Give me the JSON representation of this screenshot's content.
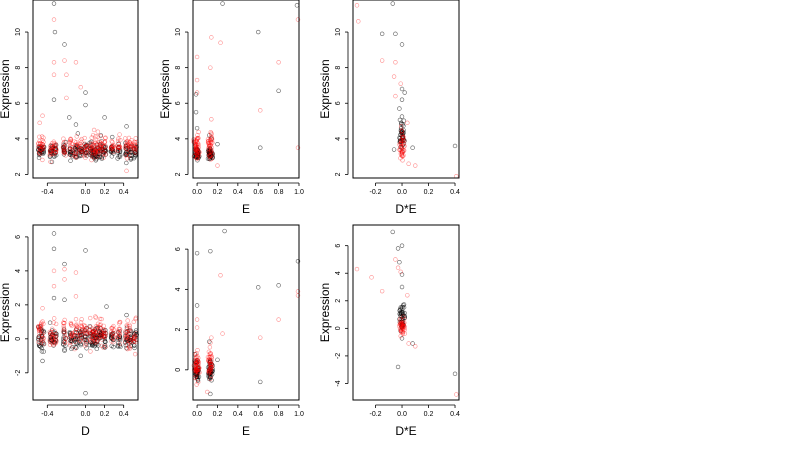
{
  "figure": {
    "point_colors": {
      "black_group": "#000000",
      "red_group": "#ff0000"
    },
    "marker": "open-circle"
  },
  "chart_data": [
    {
      "type": "scatter",
      "xlabel": "D",
      "ylabel": "Expression",
      "xlim": [
        -0.55,
        0.55
      ],
      "ylim": [
        1.8,
        11.8
      ],
      "xticks": [
        -0.4,
        0.0,
        0.2,
        0.4
      ],
      "xtick_labels": [
        "-0.4",
        "0.0",
        "0.2",
        "0.4"
      ],
      "yticks": [
        2,
        4,
        6,
        8,
        10
      ],
      "ytick_labels": [
        "2",
        "4",
        "6",
        "8",
        "10"
      ],
      "series": [
        {
          "color": "#000000",
          "x_groups": [
            -0.48,
            -0.45,
            -0.36,
            -0.32,
            -0.22,
            -0.15,
            -0.1,
            -0.05,
            0.0,
            0.06,
            0.09,
            0.12,
            0.16,
            0.2,
            0.28,
            0.35,
            0.43,
            0.47,
            0.52
          ],
          "y_range": [
            2.7,
            3.9
          ],
          "outliers": [
            [
              -0.33,
              11.6
            ],
            [
              -0.32,
              10
            ],
            [
              -0.22,
              9.3
            ],
            [
              -0.33,
              6.2
            ],
            [
              -0.17,
              5.2
            ],
            [
              -0.1,
              4.8
            ],
            [
              0.0,
              6.6
            ],
            [
              0.0,
              5.9
            ],
            [
              0.2,
              5.2
            ],
            [
              0.43,
              4.7
            ],
            [
              0.16,
              4.2
            ],
            [
              -0.08,
              4.3
            ],
            [
              0.28,
              4.1
            ]
          ]
        },
        {
          "color": "#ff0000",
          "x_groups": [
            -0.48,
            -0.45,
            -0.36,
            -0.32,
            -0.22,
            -0.15,
            -0.1,
            -0.05,
            0.0,
            0.06,
            0.09,
            0.12,
            0.16,
            0.2,
            0.28,
            0.35,
            0.43,
            0.47,
            0.52
          ],
          "y_range": [
            2.7,
            4.3
          ],
          "outliers": [
            [
              -0.33,
              10.7
            ],
            [
              -0.33,
              8.3
            ],
            [
              -0.22,
              8.4
            ],
            [
              -0.33,
              7.6
            ],
            [
              -0.2,
              7.6
            ],
            [
              -0.1,
              8.3
            ],
            [
              -0.05,
              6.9
            ],
            [
              -0.2,
              6.3
            ],
            [
              -0.45,
              5.3
            ],
            [
              -0.48,
              4.9
            ],
            [
              0.09,
              4.5
            ],
            [
              0.13,
              4.4
            ],
            [
              0.43,
              2.2
            ],
            [
              0.52,
              3.8
            ]
          ]
        }
      ]
    },
    {
      "type": "scatter",
      "xlabel": "E",
      "ylabel": "Expression",
      "xlim": [
        -0.04,
        1.0
      ],
      "ylim": [
        1.8,
        11.8
      ],
      "xticks": [
        0.0,
        0.2,
        0.4,
        0.6,
        0.8,
        1.0
      ],
      "xtick_labels": [
        "0.0",
        "0.2",
        "0.4",
        "0.6",
        "0.8",
        "1.0"
      ],
      "yticks": [
        2,
        4,
        6,
        8,
        10
      ],
      "ytick_labels": [
        "2",
        "4",
        "6",
        "8",
        "10"
      ],
      "series": [
        {
          "color": "#000000",
          "x_groups": [
            -0.01,
            0.0,
            0.01,
            0.12,
            0.13,
            0.14
          ],
          "y_range": [
            2.7,
            3.6
          ],
          "outliers": [
            [
              -0.01,
              6.5
            ],
            [
              -0.01,
              5.5
            ],
            [
              0.0,
              4.6
            ],
            [
              0.12,
              4.2
            ],
            [
              0.6,
              10
            ],
            [
              0.8,
              6.7
            ],
            [
              0.62,
              3.5
            ],
            [
              0.25,
              11.6
            ],
            [
              0.98,
              11.5
            ],
            [
              0.14,
              4.0
            ],
            [
              0.2,
              3.7
            ]
          ]
        },
        {
          "color": "#ff0000",
          "x_groups": [
            -0.02,
            -0.01,
            0.0,
            0.01,
            0.12,
            0.13,
            0.14
          ],
          "y_range": [
            2.6,
            4.5
          ],
          "outliers": [
            [
              0.0,
              8.6
            ],
            [
              0.0,
              7.3
            ],
            [
              0.0,
              6.6
            ],
            [
              0.14,
              9.7
            ],
            [
              0.13,
              8.0
            ],
            [
              0.23,
              9.4
            ],
            [
              0.62,
              5.6
            ],
            [
              0.8,
              8.3
            ],
            [
              0.99,
              10.7
            ],
            [
              0.99,
              3.5
            ],
            [
              0.2,
              2.5
            ],
            [
              0.14,
              5.1
            ]
          ]
        }
      ]
    },
    {
      "type": "scatter",
      "xlabel": "D*E",
      "ylabel": "Expression",
      "xlim": [
        -0.37,
        0.43
      ],
      "ylim": [
        1.8,
        11.8
      ],
      "xticks": [
        -0.2,
        0.0,
        0.2,
        0.4
      ],
      "xtick_labels": [
        "-0.2",
        "0.0",
        "0.2",
        "0.4"
      ],
      "yticks": [
        2,
        4,
        6,
        8,
        10
      ],
      "ytick_labels": [
        "2",
        "4",
        "6",
        "8",
        "10"
      ],
      "series": [
        {
          "color": "#000000",
          "x_groups": [
            -0.01,
            0.0,
            0.01
          ],
          "y_range": [
            2.8,
            5.6
          ],
          "outliers": [
            [
              -0.07,
              11.6
            ],
            [
              -0.05,
              9.9
            ],
            [
              -0.15,
              9.9
            ],
            [
              0.0,
              9.3
            ],
            [
              0.0,
              6.8
            ],
            [
              0.0,
              6.2
            ],
            [
              -0.02,
              5.7
            ],
            [
              0.02,
              6.6
            ],
            [
              0.4,
              3.6
            ],
            [
              0.08,
              3.5
            ],
            [
              -0.06,
              3.4
            ]
          ]
        },
        {
          "color": "#ff0000",
          "x_groups": [
            -0.01,
            0.0,
            0.01
          ],
          "y_range": [
            2.7,
            4.6
          ],
          "outliers": [
            [
              -0.34,
              11.5
            ],
            [
              -0.33,
              10.6
            ],
            [
              -0.15,
              8.4
            ],
            [
              -0.05,
              8.3
            ],
            [
              -0.06,
              7.5
            ],
            [
              -0.01,
              7.1
            ],
            [
              -0.05,
              6.4
            ],
            [
              0.05,
              2.6
            ],
            [
              0.1,
              2.5
            ],
            [
              0.41,
              1.9
            ],
            [
              0.04,
              4.9
            ]
          ]
        }
      ]
    },
    {
      "type": "scatter",
      "xlabel": "D",
      "ylabel": "Expression",
      "xlim": [
        -0.55,
        0.55
      ],
      "ylim": [
        -3.6,
        6.7
      ],
      "xticks": [
        -0.4,
        0.0,
        0.2,
        0.4
      ],
      "xtick_labels": [
        "-0.4",
        "0.0",
        "0.2",
        "0.4"
      ],
      "yticks": [
        -2,
        0,
        2,
        4,
        6
      ],
      "ytick_labels": [
        "-2",
        "0",
        "2",
        "4",
        "6"
      ],
      "series": [
        {
          "color": "#000000",
          "x_groups": [
            -0.48,
            -0.45,
            -0.36,
            -0.32,
            -0.22,
            -0.15,
            -0.1,
            -0.05,
            0.0,
            0.06,
            0.09,
            0.12,
            0.16,
            0.2,
            0.28,
            0.35,
            0.43,
            0.47,
            0.52
          ],
          "y_range": [
            -0.8,
            0.9
          ],
          "outliers": [
            [
              -0.33,
              6.2
            ],
            [
              -0.33,
              5.3
            ],
            [
              -0.22,
              4.4
            ],
            [
              0.0,
              5.2
            ],
            [
              -0.33,
              2.4
            ],
            [
              -0.22,
              2.3
            ],
            [
              -0.45,
              -1.3
            ],
            [
              -0.05,
              -1.0
            ],
            [
              0.0,
              -3.2
            ],
            [
              0.22,
              1.9
            ],
            [
              0.43,
              1.4
            ]
          ]
        },
        {
          "color": "#ff0000",
          "x_groups": [
            -0.48,
            -0.45,
            -0.36,
            -0.32,
            -0.22,
            -0.15,
            -0.1,
            -0.05,
            0.0,
            0.06,
            0.09,
            0.12,
            0.16,
            0.2,
            0.28,
            0.35,
            0.43,
            0.47,
            0.52
          ],
          "y_range": [
            -0.7,
            1.4
          ],
          "outliers": [
            [
              -0.33,
              4.0
            ],
            [
              -0.22,
              4.1
            ],
            [
              -0.22,
              3.5
            ],
            [
              -0.1,
              3.9
            ],
            [
              -0.33,
              3.1
            ],
            [
              -0.45,
              1.8
            ],
            [
              -0.1,
              2.5
            ],
            [
              0.44,
              -0.6
            ],
            [
              0.52,
              -0.9
            ]
          ]
        }
      ]
    },
    {
      "type": "scatter",
      "xlabel": "E",
      "ylabel": "",
      "xlim": [
        -0.04,
        1.0
      ],
      "ylim": [
        -1.5,
        7.2
      ],
      "xticks": [
        0.0,
        0.2,
        0.4,
        0.6,
        0.8,
        1.0
      ],
      "xtick_labels": [
        "0.0",
        "0.2",
        "0.4",
        "0.6",
        "0.8",
        "1.0"
      ],
      "yticks": [
        0,
        2,
        4,
        6
      ],
      "ytick_labels": [
        "0",
        "2",
        "4",
        "6"
      ],
      "series": [
        {
          "color": "#000000",
          "x_groups": [
            -0.01,
            0.0,
            0.01,
            0.12,
            0.13,
            0.14
          ],
          "y_range": [
            -0.7,
            0.7
          ],
          "outliers": [
            [
              0.0,
              5.8
            ],
            [
              0.0,
              3.2
            ],
            [
              0.12,
              1.4
            ],
            [
              0.13,
              5.9
            ],
            [
              0.27,
              6.9
            ],
            [
              0.6,
              4.1
            ],
            [
              0.8,
              4.2
            ],
            [
              0.99,
              5.4
            ],
            [
              0.62,
              -0.6
            ],
            [
              0.13,
              -1.2
            ],
            [
              0.2,
              0.5
            ]
          ]
        },
        {
          "color": "#ff0000",
          "x_groups": [
            -0.02,
            -0.01,
            0.0,
            0.01,
            0.12,
            0.13,
            0.14
          ],
          "y_range": [
            -0.8,
            1.2
          ],
          "outliers": [
            [
              0.0,
              2.5
            ],
            [
              0.0,
              2.1
            ],
            [
              0.14,
              1.6
            ],
            [
              0.23,
              4.7
            ],
            [
              0.62,
              1.6
            ],
            [
              0.8,
              2.5
            ],
            [
              0.99,
              3.7
            ],
            [
              0.99,
              3.9
            ],
            [
              0.25,
              1.8
            ],
            [
              0.1,
              -1.1
            ]
          ]
        }
      ]
    },
    {
      "type": "scatter",
      "xlabel": "D*E",
      "ylabel": "Expression",
      "xlim": [
        -0.37,
        0.43
      ],
      "ylim": [
        -5.2,
        7.5
      ],
      "xticks": [
        -0.2,
        0.0,
        0.2,
        0.4
      ],
      "xtick_labels": [
        "-0.2",
        "0.0",
        "0.2",
        "0.4"
      ],
      "yticks": [
        -4,
        -2,
        0,
        2,
        4,
        6
      ],
      "ytick_labels": [
        "-4",
        "-2",
        "0",
        "2",
        "4",
        "6"
      ],
      "series": [
        {
          "color": "#000000",
          "x_groups": [
            -0.01,
            0.0,
            0.01
          ],
          "y_range": [
            -0.9,
            2.2
          ],
          "outliers": [
            [
              -0.07,
              7.0
            ],
            [
              -0.03,
              5.8
            ],
            [
              0.0,
              6.0
            ],
            [
              -0.02,
              4.8
            ],
            [
              0.0,
              3.9
            ],
            [
              0.0,
              3.0
            ],
            [
              -0.03,
              -2.8
            ],
            [
              0.4,
              -3.3
            ],
            [
              0.08,
              -1.1
            ]
          ]
        },
        {
          "color": "#ff0000",
          "x_groups": [
            -0.01,
            0.0,
            0.01
          ],
          "y_range": [
            -0.6,
            1.0
          ],
          "outliers": [
            [
              -0.34,
              4.3
            ],
            [
              -0.23,
              3.7
            ],
            [
              -0.15,
              2.7
            ],
            [
              -0.05,
              5.0
            ],
            [
              -0.03,
              4.4
            ],
            [
              -0.01,
              4.1
            ],
            [
              0.05,
              -1.1
            ],
            [
              0.1,
              -1.3
            ],
            [
              0.41,
              -4.8
            ],
            [
              0.04,
              2.4
            ]
          ]
        }
      ]
    }
  ]
}
